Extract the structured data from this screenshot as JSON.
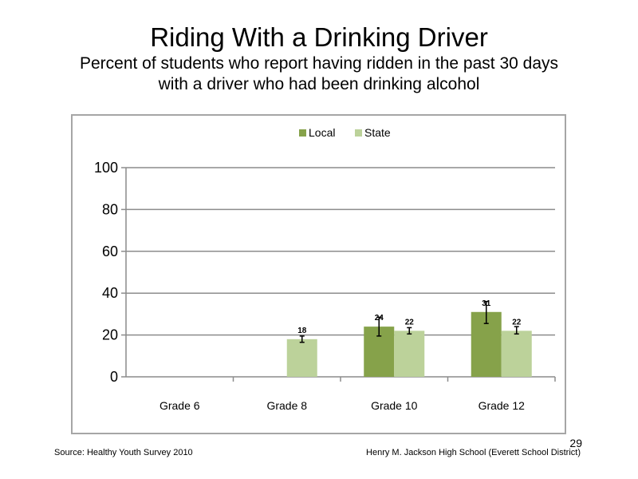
{
  "slide": {
    "title": "Riding With a Drinking Driver",
    "subtitle_line1": "Percent of students who report having ridden in the past 30 days",
    "subtitle_line2": "with a driver who had been drinking alcohol",
    "source": "Source: Healthy Youth Survey 2010",
    "school": "Henry M. Jackson High School (Everett School District)",
    "page_number": "29"
  },
  "chart_data": {
    "type": "bar",
    "categories": [
      "Grade 6",
      "Grade 8",
      "Grade 10",
      "Grade 12"
    ],
    "series": [
      {
        "name": "Local",
        "color": "#86a24a",
        "values": [
          null,
          null,
          24,
          31
        ],
        "labels": [
          "",
          "",
          "24",
          "31"
        ],
        "error": [
          null,
          null,
          [
            19.5,
            28.5
          ],
          [
            25.5,
            36
          ]
        ]
      },
      {
        "name": "State",
        "color": "#bcd29a",
        "values": [
          null,
          18,
          22,
          22
        ],
        "labels": [
          "",
          "18",
          "22",
          "22"
        ],
        "error": [
          null,
          [
            16.5,
            19.5
          ],
          [
            20.5,
            23.5
          ],
          [
            20.5,
            24
          ]
        ]
      }
    ],
    "yticks": [
      "0",
      "20",
      "40",
      "60",
      "80",
      "100"
    ],
    "ylim": [
      0,
      100
    ],
    "grid": true,
    "legend_position": "top-center"
  }
}
